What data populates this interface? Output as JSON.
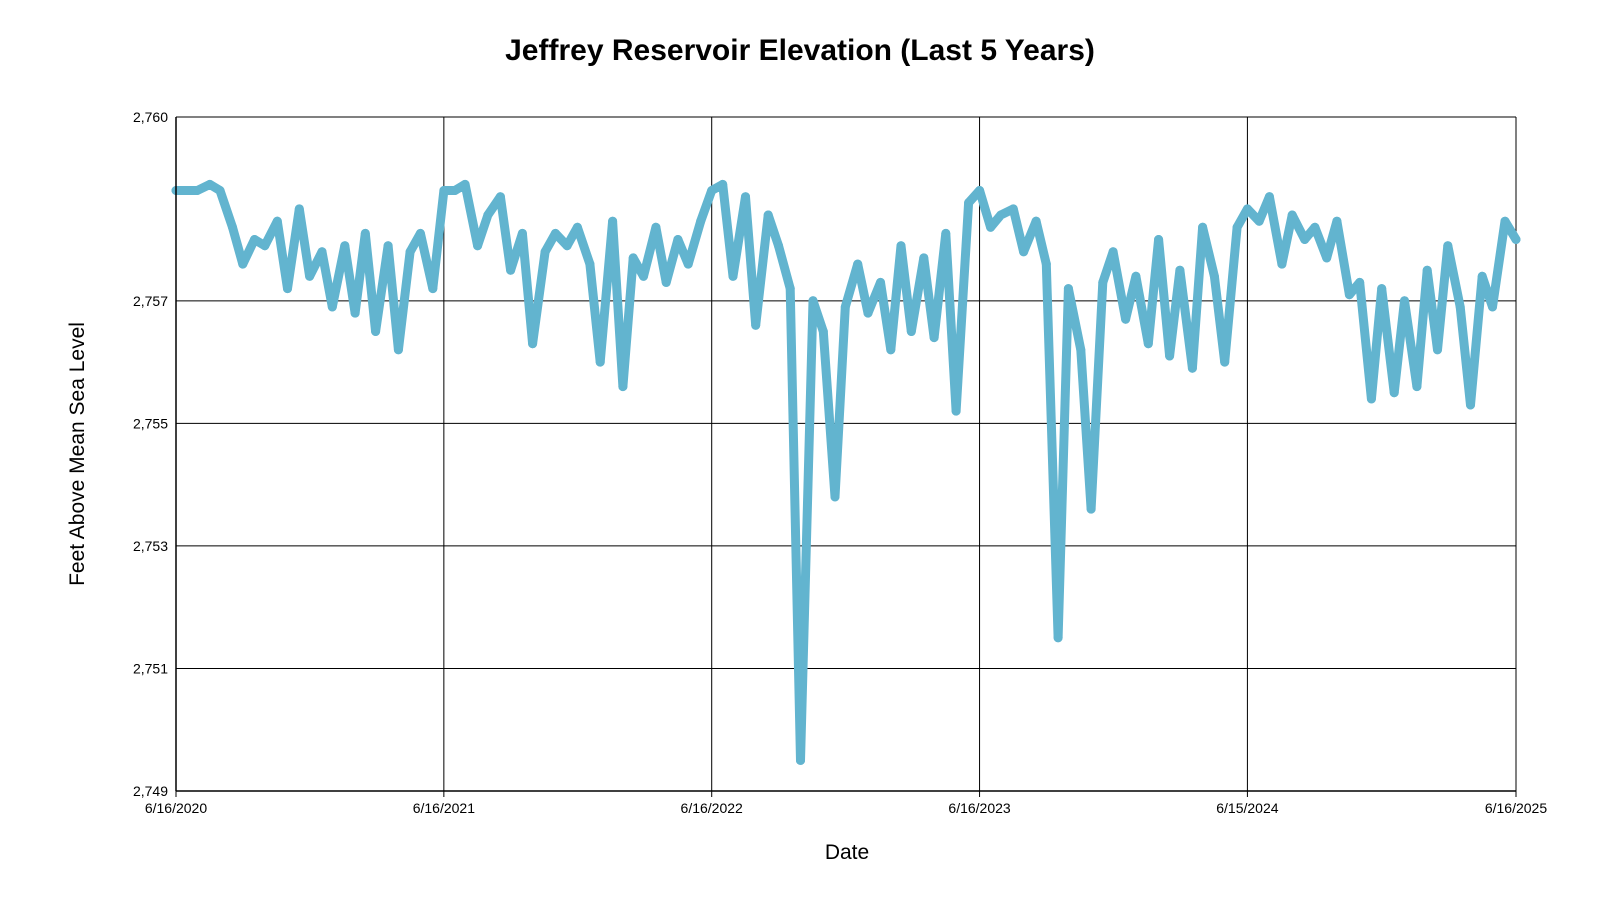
{
  "chart_data": {
    "type": "line",
    "title": "Jeffrey Reservoir Elevation (Last 5 Years)",
    "xlabel": "Date",
    "ylabel": "Feet Above Mean Sea Level",
    "grid": true,
    "legend": "none",
    "xlim": [
      "2020-06-16",
      "2025-06-16"
    ],
    "ylim": [
      2749,
      2760
    ],
    "x_ticks": [
      "6/16/2020",
      "6/16/2021",
      "6/16/2022",
      "6/16/2023",
      "6/15/2024",
      "6/16/2025"
    ],
    "y_ticks": [
      "2,749",
      "2,751",
      "2,753",
      "2,755",
      "2,757",
      "2,760"
    ],
    "line_color": "#62b4cf",
    "series": [
      {
        "x": [
          "2020-06-16",
          "2020-07-01",
          "2020-07-15",
          "2020-08-01",
          "2020-08-15",
          "2020-09-01",
          "2020-09-15",
          "2020-10-01",
          "2020-10-15",
          "2020-11-01",
          "2020-11-15",
          "2020-12-01",
          "2020-12-15",
          "2021-01-01",
          "2021-01-15",
          "2021-02-01",
          "2021-02-15",
          "2021-03-01",
          "2021-03-15",
          "2021-04-01",
          "2021-04-15",
          "2021-05-01",
          "2021-05-15",
          "2021-06-01",
          "2021-06-16",
          "2021-07-01",
          "2021-07-15",
          "2021-08-01",
          "2021-08-15",
          "2021-09-01",
          "2021-09-15",
          "2021-10-01",
          "2021-10-15",
          "2021-11-01",
          "2021-11-15",
          "2021-12-01",
          "2021-12-15",
          "2022-01-01",
          "2022-01-15",
          "2022-02-01",
          "2022-02-15",
          "2022-03-01",
          "2022-03-15",
          "2022-04-01",
          "2022-04-15",
          "2022-05-01",
          "2022-05-15",
          "2022-06-01",
          "2022-06-16",
          "2022-07-01",
          "2022-07-15",
          "2022-08-01",
          "2022-08-15",
          "2022-09-01",
          "2022-09-15",
          "2022-10-01",
          "2022-10-15",
          "2022-11-01",
          "2022-11-15",
          "2022-12-01",
          "2022-12-15",
          "2023-01-01",
          "2023-01-15",
          "2023-02-01",
          "2023-02-15",
          "2023-03-01",
          "2023-03-15",
          "2023-04-01",
          "2023-04-15",
          "2023-05-01",
          "2023-05-15",
          "2023-06-01",
          "2023-06-16",
          "2023-07-01",
          "2023-07-15",
          "2023-08-01",
          "2023-08-15",
          "2023-09-01",
          "2023-09-15",
          "2023-10-01",
          "2023-10-15",
          "2023-11-01",
          "2023-11-15",
          "2023-12-01",
          "2023-12-15",
          "2024-01-01",
          "2024-01-15",
          "2024-02-01",
          "2024-02-15",
          "2024-03-01",
          "2024-03-15",
          "2024-04-01",
          "2024-04-15",
          "2024-05-01",
          "2024-05-15",
          "2024-06-01",
          "2024-06-15",
          "2024-07-01",
          "2024-07-15",
          "2024-08-01",
          "2024-08-15",
          "2024-09-01",
          "2024-09-15",
          "2024-10-01",
          "2024-10-15",
          "2024-11-01",
          "2024-11-15",
          "2024-12-01",
          "2024-12-15",
          "2025-01-01",
          "2025-01-15",
          "2025-02-01",
          "2025-02-15",
          "2025-03-01",
          "2025-03-15",
          "2025-04-01",
          "2025-04-15",
          "2025-05-01",
          "2025-05-15",
          "2025-06-01",
          "2025-06-16"
        ],
        "y": [
          2758.8,
          2758.8,
          2758.8,
          2758.9,
          2758.8,
          2758.2,
          2757.6,
          2758.0,
          2757.9,
          2758.3,
          2757.2,
          2758.5,
          2757.4,
          2757.8,
          2756.9,
          2757.9,
          2756.8,
          2758.1,
          2756.5,
          2757.9,
          2756.2,
          2757.8,
          2758.1,
          2757.2,
          2758.8,
          2758.8,
          2758.9,
          2757.9,
          2758.4,
          2758.7,
          2757.5,
          2758.1,
          2756.3,
          2757.8,
          2758.1,
          2757.9,
          2758.2,
          2757.6,
          2756.0,
          2758.3,
          2755.6,
          2757.7,
          2757.4,
          2758.2,
          2757.3,
          2758.0,
          2757.6,
          2758.3,
          2758.8,
          2758.9,
          2757.4,
          2758.7,
          2756.6,
          2758.4,
          2757.9,
          2757.2,
          2749.5,
          2757.0,
          2756.5,
          2753.8,
          2756.9,
          2757.6,
          2756.8,
          2757.3,
          2756.2,
          2757.9,
          2756.5,
          2757.7,
          2756.4,
          2758.1,
          2755.2,
          2758.6,
          2758.8,
          2758.2,
          2758.4,
          2758.5,
          2757.8,
          2758.3,
          2757.6,
          2751.5,
          2757.2,
          2756.2,
          2753.6,
          2757.3,
          2757.8,
          2756.7,
          2757.4,
          2756.3,
          2758.0,
          2756.1,
          2757.5,
          2755.9,
          2758.2,
          2757.4,
          2756.0,
          2758.2,
          2758.5,
          2758.3,
          2758.7,
          2757.6,
          2758.4,
          2758.0,
          2758.2,
          2757.7,
          2758.3,
          2757.1,
          2757.3,
          2755.4,
          2757.2,
          2755.5,
          2757.0,
          2755.6,
          2757.5,
          2756.2,
          2757.9,
          2756.9,
          2755.3,
          2757.4,
          2756.9,
          2758.3,
          2758.0
        ]
      }
    ]
  }
}
